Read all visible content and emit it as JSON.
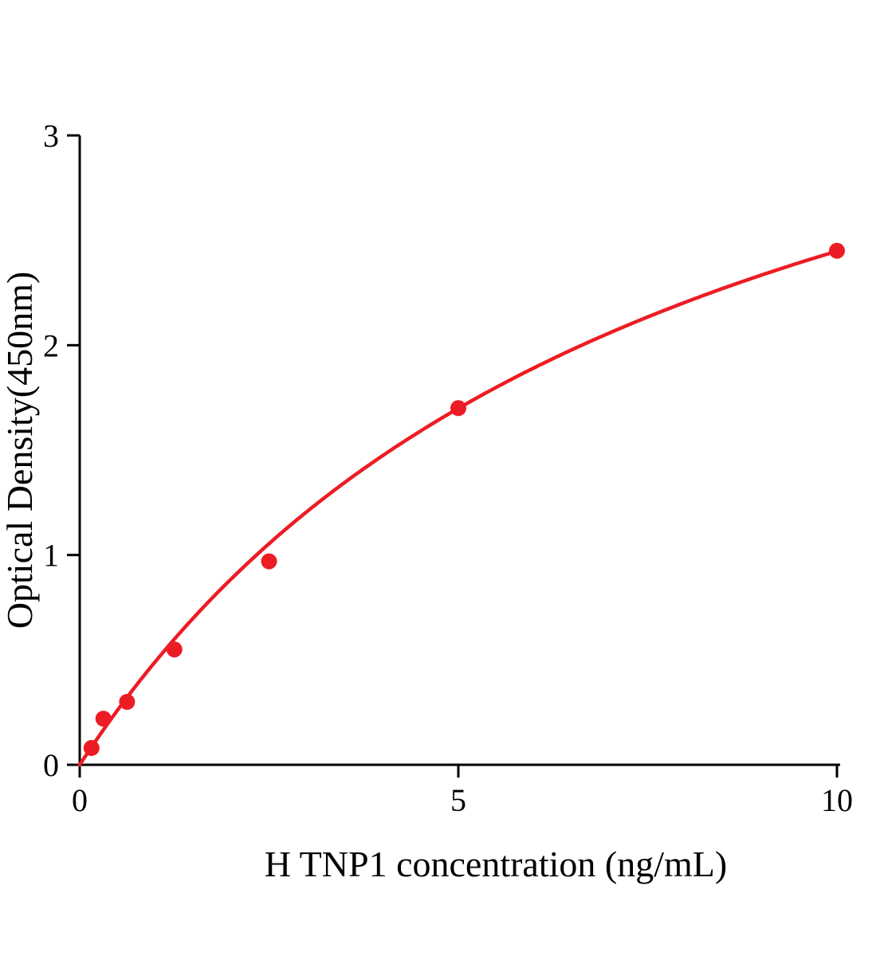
{
  "chart_data": {
    "type": "scatter",
    "title": "",
    "xlabel": "H TNP1 concentration (ng/mL)",
    "ylabel": "Optical Density(450nm)",
    "x": [
      0.156,
      0.3125,
      0.625,
      1.25,
      2.5,
      5,
      10
    ],
    "y": [
      0.08,
      0.22,
      0.3,
      0.55,
      0.97,
      1.7,
      2.45
    ],
    "xlim": [
      0,
      10
    ],
    "ylim": [
      0,
      3
    ],
    "xticks": [
      "0",
      "5",
      "10"
    ],
    "xtick_values": [
      0,
      5,
      10
    ],
    "yticks": [
      "0",
      "1",
      "2",
      "3"
    ],
    "ytick_values": [
      0,
      1,
      2,
      3
    ],
    "curve_fit": {
      "model": "one_site_binding",
      "bmax": 4.38,
      "kd": 7.89
    },
    "line_color": "#ec1c24",
    "marker_color": "#ec1c24",
    "marker_radius": 10,
    "axis_color": "#000000",
    "grid": false,
    "legend_position": "none"
  }
}
